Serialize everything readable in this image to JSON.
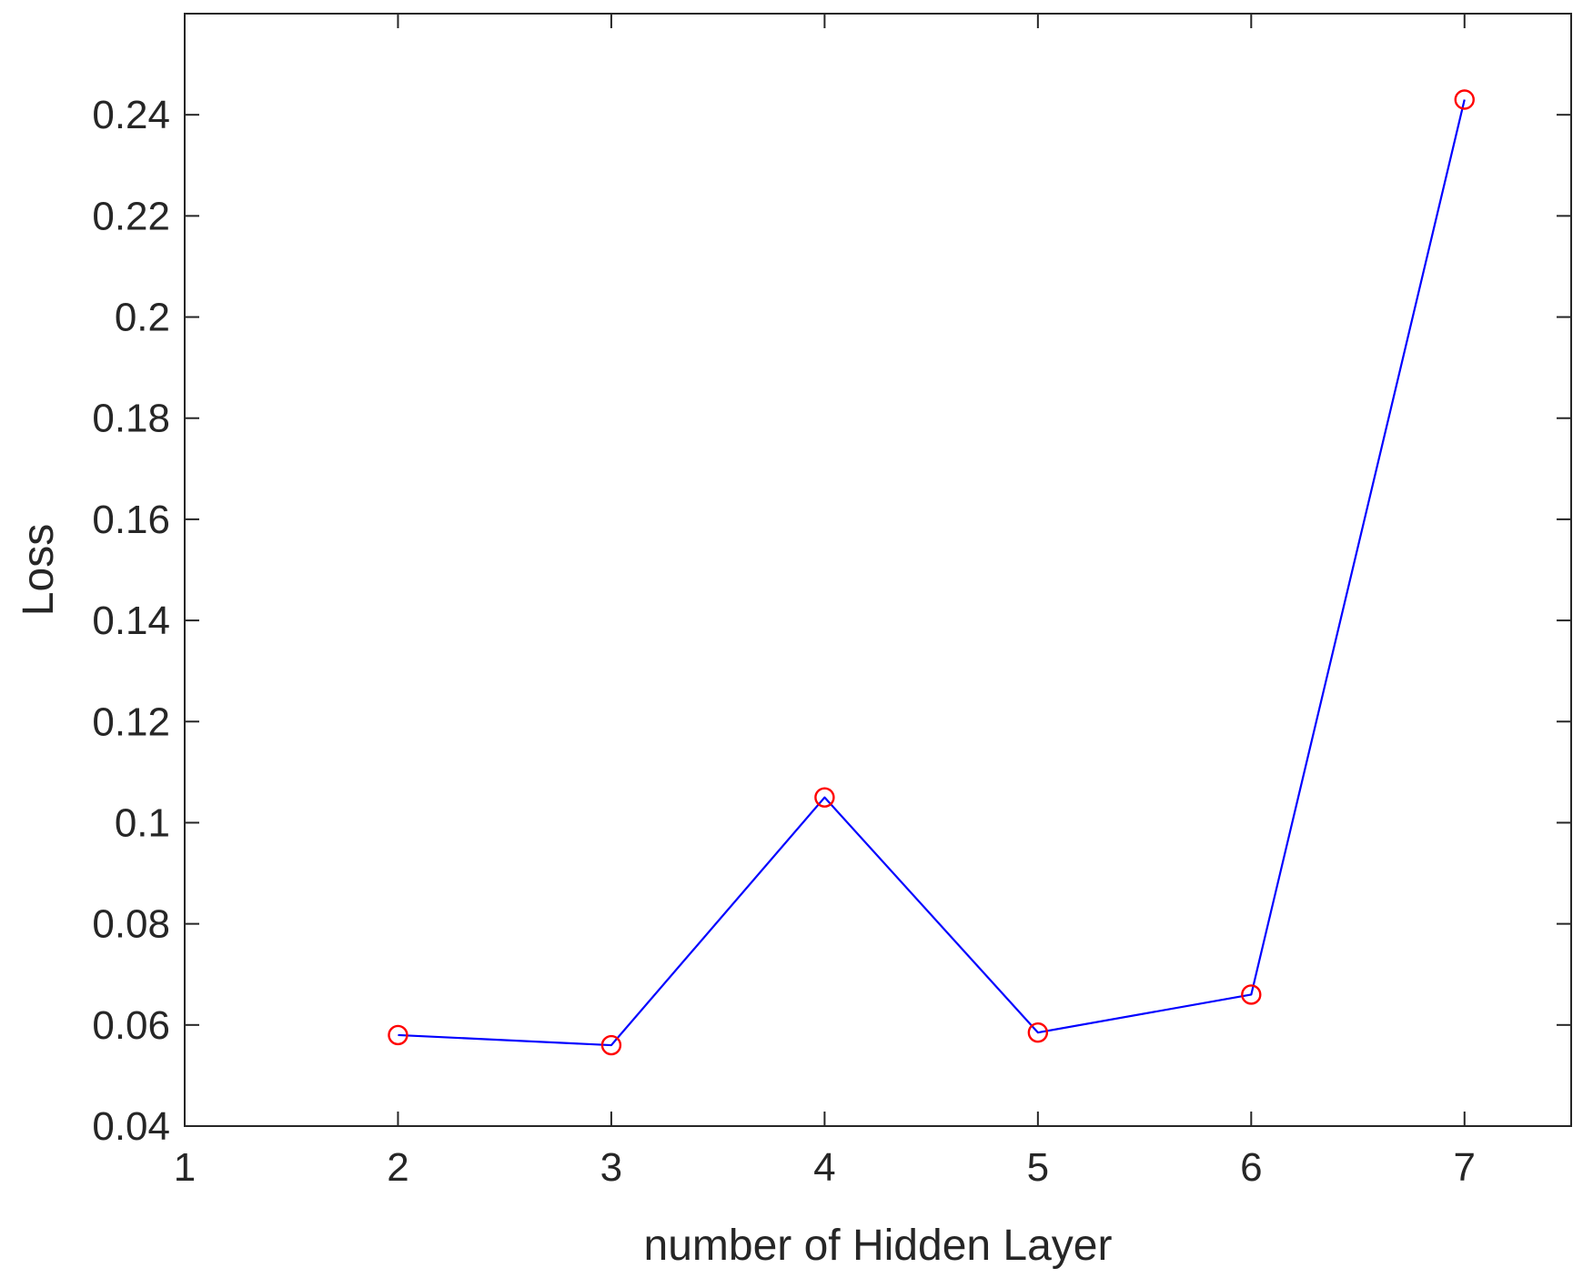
{
  "chart_data": {
    "type": "line",
    "title": "",
    "xlabel": "number of Hidden Layer",
    "ylabel": "Loss",
    "xlim": [
      1,
      7.5
    ],
    "ylim": [
      0.04,
      0.26
    ],
    "xticks": [
      1,
      2,
      3,
      4,
      5,
      6,
      7
    ],
    "xtick_labels": [
      "1",
      "2",
      "3",
      "4",
      "5",
      "6",
      "7"
    ],
    "yticks": [
      0.04,
      0.06,
      0.08,
      0.1,
      0.12,
      0.14,
      0.16,
      0.18,
      0.2,
      0.22,
      0.24
    ],
    "ytick_labels": [
      "0.04",
      "0.06",
      "0.08",
      "0.1",
      "0.12",
      "0.14",
      "0.16",
      "0.18",
      "0.2",
      "0.22",
      "0.24"
    ],
    "grid": false,
    "box": true,
    "series": [
      {
        "x": [
          2,
          3,
          4,
          5,
          6,
          7
        ],
        "values": [
          0.058,
          0.056,
          0.105,
          0.0585,
          0.066,
          0.243
        ],
        "line_color": "#0000ff",
        "marker": "circle",
        "marker_color": "#ff0000"
      }
    ],
    "colors": {
      "axis": "#262626",
      "background": "#ffffff"
    }
  }
}
